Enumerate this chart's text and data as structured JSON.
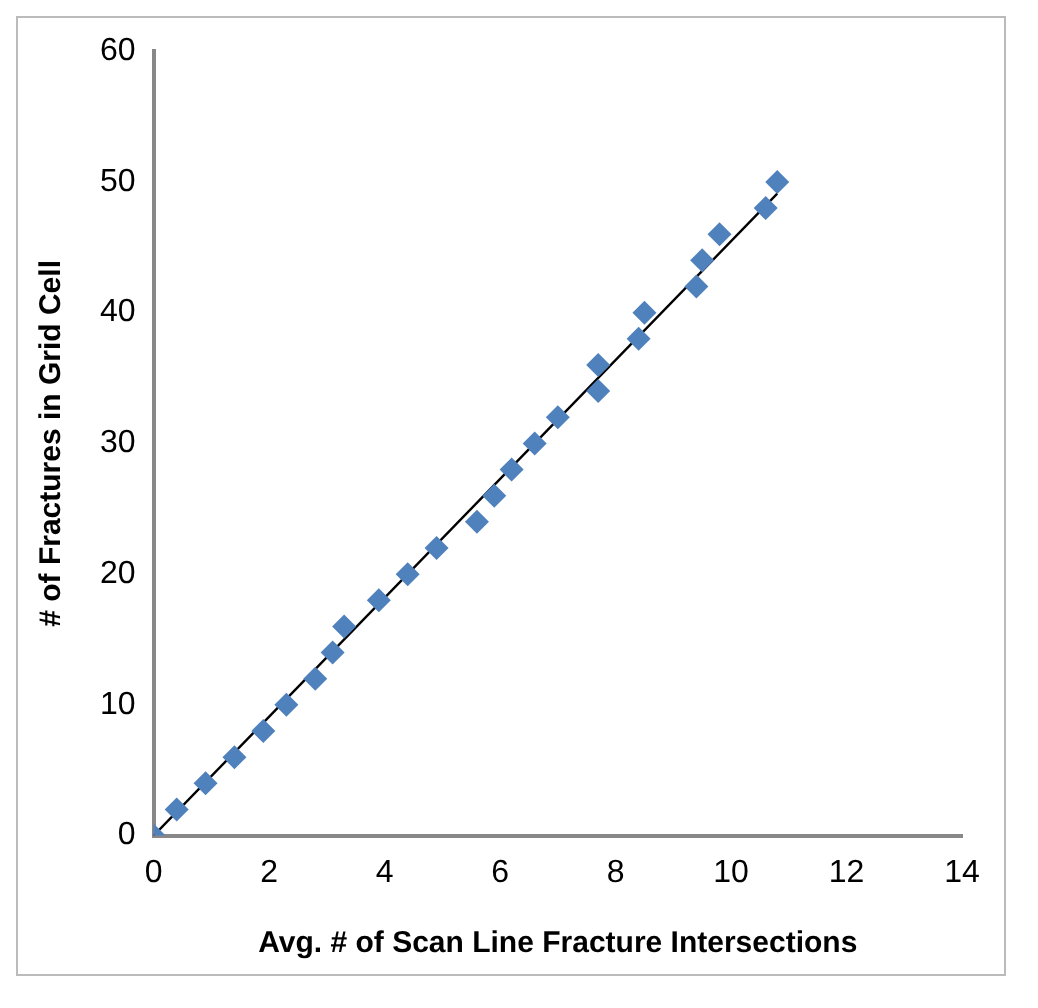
{
  "chart_data": {
    "type": "scatter",
    "xlabel": "Avg. # of Scan Line Fracture Intersections",
    "ylabel": "# of Fractures in Grid Cell",
    "x": [
      0,
      0.4,
      0.9,
      1.4,
      1.9,
      2.3,
      2.8,
      3.1,
      3.3,
      3.9,
      4.4,
      4.9,
      5.6,
      5.9,
      6.2,
      6.6,
      7.0,
      7.7,
      7.7,
      8.4,
      8.5,
      9.4,
      9.5,
      9.8,
      10.6,
      10.8
    ],
    "series": [
      {
        "color": "#4f81bd",
        "marker": "diamond",
        "values": [
          0,
          2,
          4,
          6,
          8,
          10,
          12,
          14,
          16,
          18,
          20,
          22,
          24,
          26,
          28,
          30,
          32,
          34,
          36,
          38,
          40,
          42,
          44,
          46,
          48,
          50
        ]
      },
      {
        "type": "line",
        "color": "#000000",
        "marker": "none",
        "x": [
          0,
          10.8
        ],
        "values": [
          0,
          49.1
        ]
      }
    ],
    "xlim": [
      0,
      14
    ],
    "xticks": [
      0,
      2,
      4,
      6,
      8,
      10,
      12,
      14
    ],
    "ylim": [
      0,
      60
    ],
    "yticks": [
      0,
      10,
      20,
      30,
      40,
      50,
      60
    ],
    "grid": false,
    "legend": false
  }
}
